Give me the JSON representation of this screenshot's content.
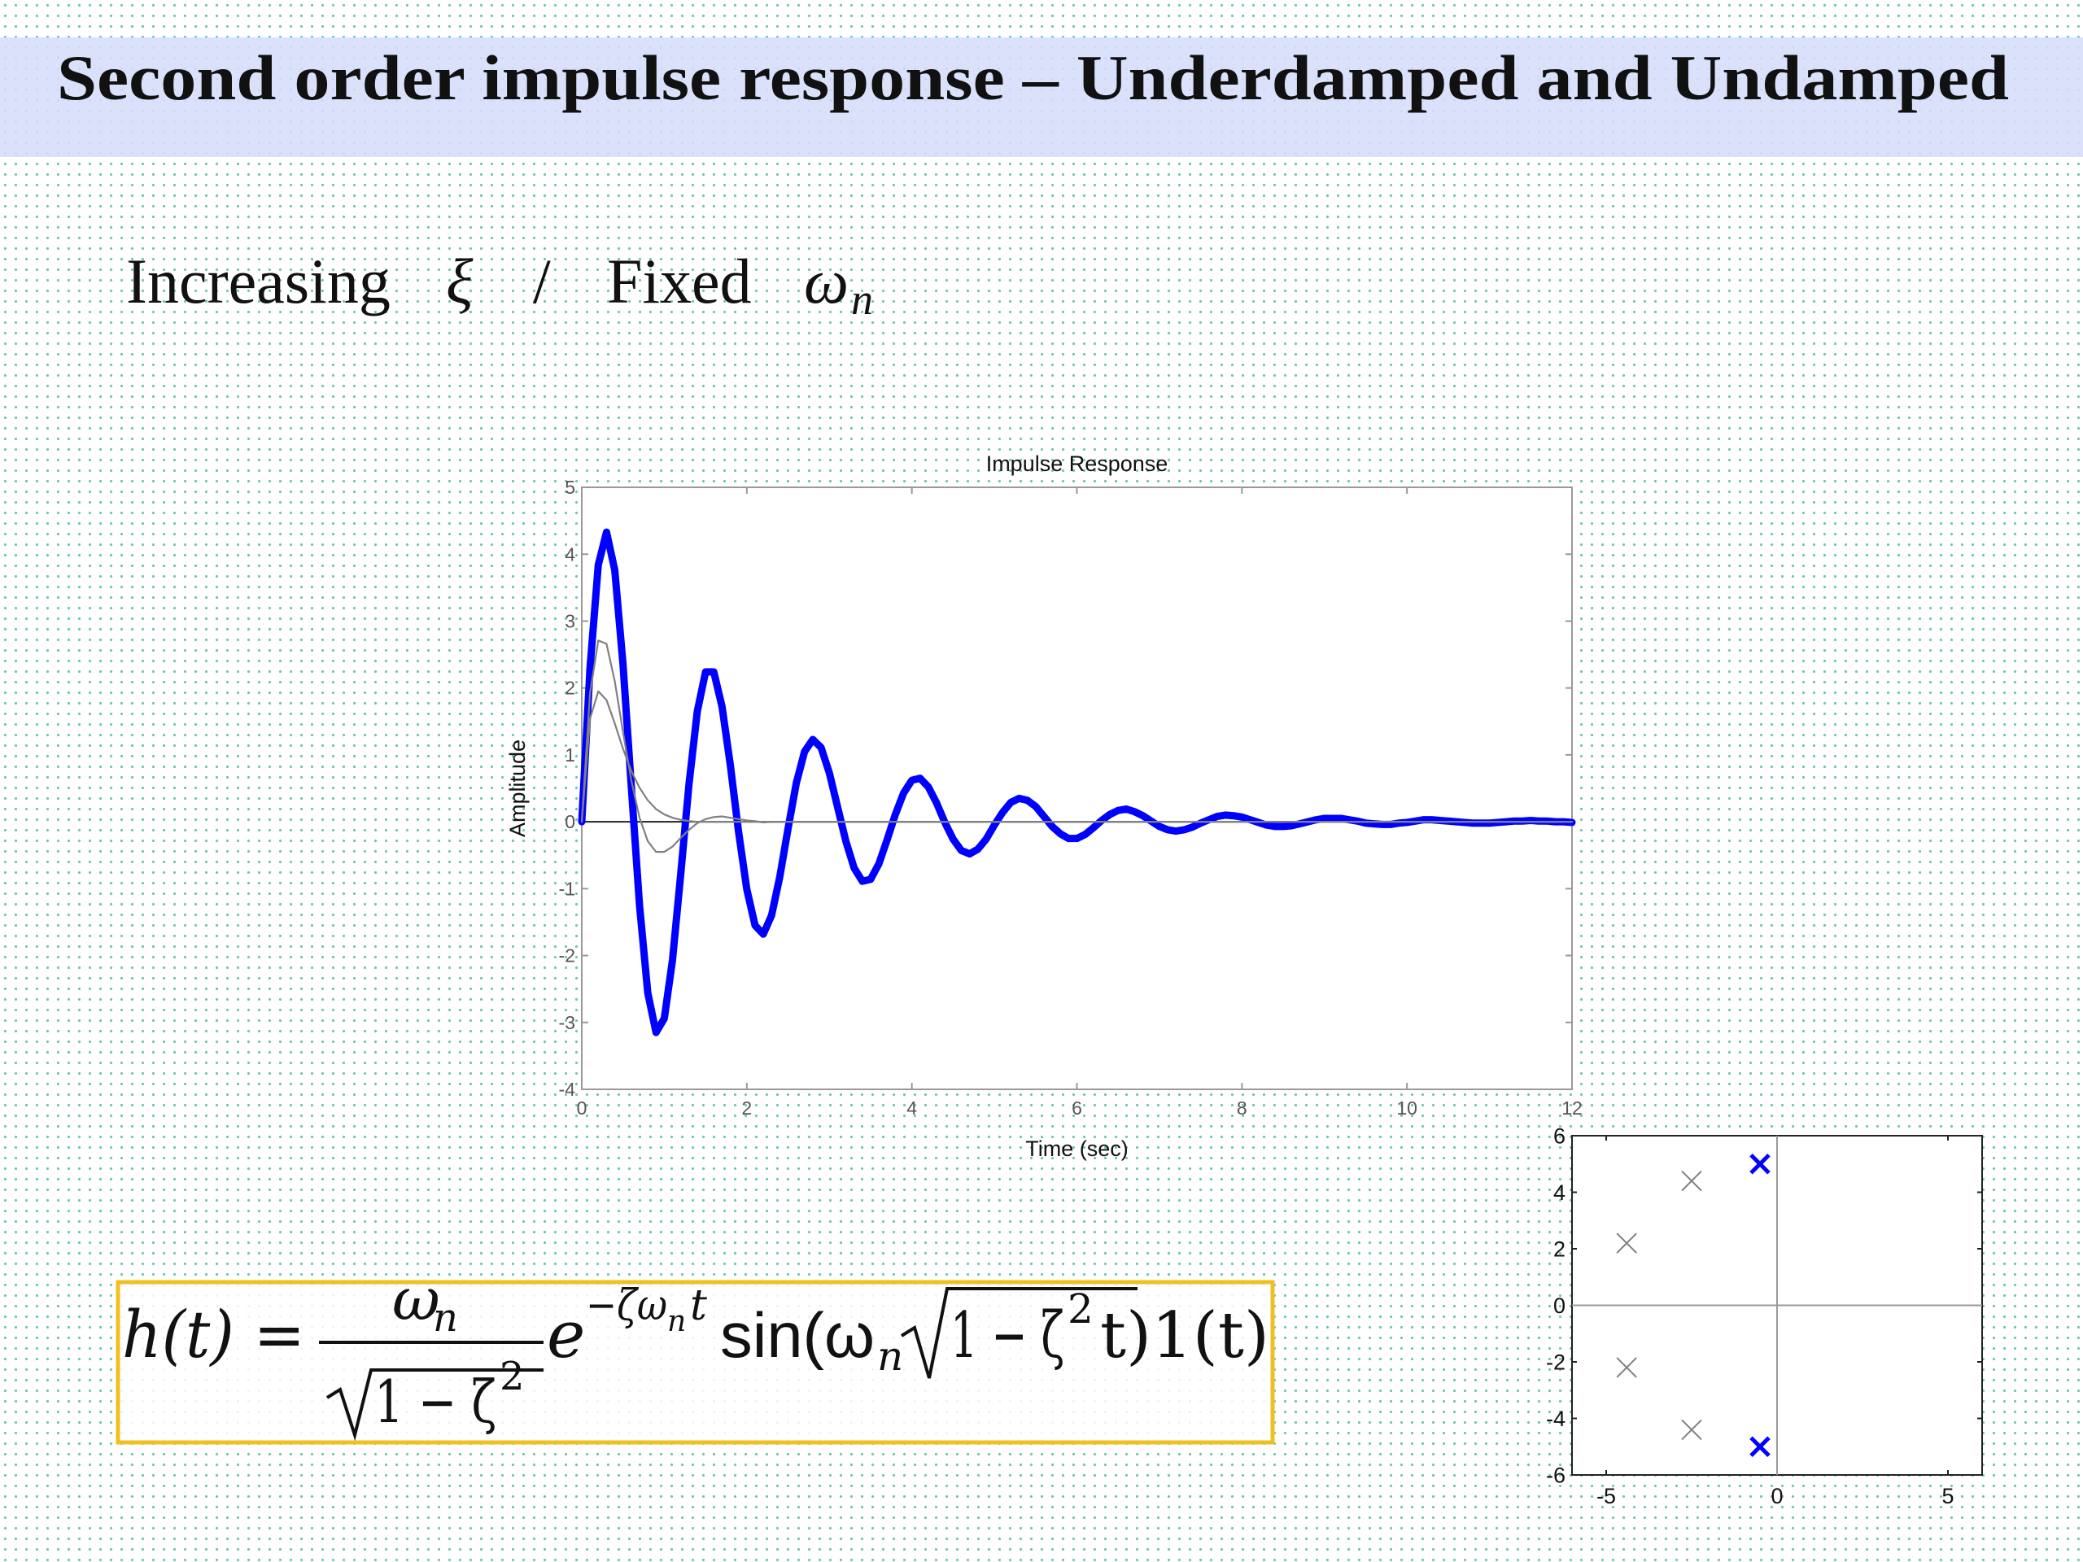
{
  "title": "Second order impulse response – Underdamped and Undamped",
  "subtitle": [
    "Increasing",
    "ξ",
    "/",
    "Fixed",
    "ω",
    "n"
  ],
  "formula": [
    "h(t) =",
    "ω",
    "n",
    "1 − ζ",
    "2",
    "e",
    "−ζω",
    "n",
    "t",
    "sin(ω",
    "n",
    "1 − ζ",
    "2",
    "t)1(t)"
  ],
  "chart_data": [
    {
      "type": "line",
      "title": "Impulse Response",
      "xlabel": "Time (sec)",
      "ylabel": "Amplitude",
      "xlim": [
        0,
        12
      ],
      "ylim": [
        -4,
        5
      ],
      "xticks": [
        0,
        2,
        4,
        6,
        8,
        10,
        12
      ],
      "yticks": [
        -4,
        -3,
        -2,
        -1,
        0,
        1,
        2,
        3,
        4,
        5
      ],
      "x": [
        0,
        0.1,
        0.2,
        0.3,
        0.4,
        0.5,
        0.6,
        0.7,
        0.8,
        0.9,
        1,
        1.1,
        1.2,
        1.3,
        1.4,
        1.5,
        1.6,
        1.7,
        1.8,
        1.9,
        2,
        2.1,
        2.2,
        2.3,
        2.4,
        2.5,
        2.6,
        2.7,
        2.8,
        2.9,
        3,
        3.1,
        3.2,
        3.3,
        3.4,
        3.5,
        3.6,
        3.7,
        3.8,
        3.9,
        4,
        4.1,
        4.2,
        4.3,
        4.4,
        4.5,
        4.6,
        4.7,
        4.8,
        4.9,
        5,
        5.1,
        5.2,
        5.3,
        5.4,
        5.5,
        5.6,
        5.7,
        5.8,
        5.9,
        6,
        6.1,
        6.2,
        6.3,
        6.4,
        6.5,
        6.6,
        6.7,
        6.8,
        6.9,
        7,
        7.1,
        7.2,
        7.3,
        7.4,
        7.5,
        7.6,
        7.7,
        7.8,
        7.9,
        8,
        8.1,
        8.2,
        8.3,
        8.4,
        8.5,
        8.6,
        8.7,
        8.8,
        8.9,
        9,
        9.1,
        9.2,
        9.3,
        9.4,
        9.5,
        9.6,
        9.7,
        9.8,
        9.9,
        10,
        10.1,
        10.2,
        10.3,
        10.4,
        10.5,
        10.6,
        10.7,
        10.8,
        10.9,
        11,
        11.1,
        11.2,
        11.3,
        11.4,
        11.5,
        11.6,
        11.7,
        11.8,
        11.9,
        12
      ],
      "series": [
        {
          "color": "#0000ff",
          "values": [
            0,
            2.3,
            3.84,
            4.33,
            3.76,
            2.35,
            0.53,
            -1.25,
            -2.56,
            -3.15,
            -2.94,
            -2.06,
            -0.77,
            0.57,
            1.65,
            2.24,
            2.24,
            1.72,
            0.85,
            -0.15,
            -1.01,
            -1.55,
            -1.68,
            -1.4,
            -0.82,
            -0.1,
            0.58,
            1.05,
            1.23,
            1.11,
            0.73,
            0.22,
            -0.29,
            -0.69,
            -0.89,
            -0.86,
            -0.63,
            -0.27,
            0.11,
            0.43,
            0.62,
            0.65,
            0.52,
            0.28,
            -0.01,
            -0.26,
            -0.43,
            -0.48,
            -0.41,
            -0.26,
            -0.05,
            0.14,
            0.29,
            0.35,
            0.32,
            0.23,
            0.08,
            -0.07,
            -0.18,
            -0.25,
            -0.25,
            -0.19,
            -0.09,
            0.02,
            0.11,
            0.17,
            0.19,
            0.15,
            0.09,
            0.01,
            -0.07,
            -0.12,
            -0.14,
            -0.12,
            -0.08,
            -0.02,
            0.03,
            0.08,
            0.1,
            0.09,
            0.07,
            0.03,
            -0.01,
            -0.05,
            -0.07,
            -0.07,
            -0.06,
            -0.03,
            0,
            0.03,
            0.05,
            0.05,
            0.05,
            0.03,
            0.01,
            -0.02,
            -0.03,
            -0.04,
            -0.04,
            -0.02,
            -0.01,
            0.01,
            0.03,
            0.03,
            0.02,
            0.01,
            0,
            -0.01,
            -0.02,
            -0.02,
            -0.02,
            -0.01,
            0,
            0.01,
            0.01,
            0.02,
            0.01,
            0.01,
            0,
            0,
            -0.01
          ]
        },
        {
          "color": "#808080",
          "values": [
            0,
            1.92,
            2.71,
            2.66,
            2.1,
            1.34,
            0.62,
            0.06,
            -0.29,
            -0.45,
            -0.45,
            -0.37,
            -0.24,
            -0.12,
            -0.02,
            0.04,
            0.07,
            0.08,
            0.06,
            0.04,
            0.02,
            0.01,
            -0.01,
            0,
            0,
            0,
            0,
            0,
            0,
            0,
            0,
            0,
            0,
            0,
            0,
            0,
            0,
            0,
            0,
            0,
            0,
            0,
            0,
            0,
            0,
            0,
            0,
            0,
            0,
            0,
            0,
            0,
            0,
            0,
            0,
            0,
            0,
            0,
            0,
            0,
            0,
            0,
            0,
            0,
            0,
            0,
            0,
            0,
            0,
            0,
            0,
            0,
            0,
            0,
            0,
            0,
            0,
            0,
            0,
            0,
            0,
            0,
            0,
            0,
            0,
            0,
            0,
            0,
            0,
            0,
            0,
            0,
            0,
            0,
            0,
            0,
            0,
            0,
            0,
            0,
            0,
            0,
            0,
            0,
            0,
            0,
            0,
            0,
            0,
            0,
            0,
            0,
            0,
            0,
            0,
            0,
            0,
            0,
            0,
            0,
            0
          ]
        },
        {
          "color": "#808080",
          "values": [
            0,
            1.54,
            1.95,
            1.82,
            1.47,
            1.09,
            0.76,
            0.51,
            0.32,
            0.19,
            0.11,
            0.06,
            0.03,
            0.01,
            0,
            0,
            0,
            0,
            0,
            0,
            0,
            0,
            0,
            0,
            0,
            0,
            0,
            0,
            0,
            0,
            0,
            0,
            0,
            0,
            0,
            0,
            0,
            0,
            0,
            0,
            0,
            0,
            0,
            0,
            0,
            0,
            0,
            0,
            0,
            0,
            0,
            0,
            0,
            0,
            0,
            0,
            0,
            0,
            0,
            0,
            0,
            0,
            0,
            0,
            0,
            0,
            0,
            0,
            0,
            0,
            0,
            0,
            0,
            0,
            0,
            0,
            0,
            0,
            0,
            0,
            0,
            0,
            0,
            0,
            0,
            0,
            0,
            0,
            0,
            0,
            0,
            0,
            0,
            0,
            0,
            0,
            0,
            0,
            0,
            0,
            0,
            0,
            0,
            0,
            0,
            0,
            0,
            0,
            0,
            0,
            0,
            0,
            0,
            0,
            0,
            0,
            0,
            0,
            0,
            0,
            0
          ]
        }
      ]
    },
    {
      "type": "scatter",
      "xlim": [
        -6,
        6
      ],
      "ylim": [
        -6,
        6
      ],
      "xticks": [
        -5,
        0,
        5
      ],
      "yticks": [
        -6,
        -4,
        -2,
        0,
        2,
        4,
        6
      ],
      "series": [
        {
          "color": "#0000ff",
          "x": [
            -0.5,
            -0.5
          ],
          "values": [
            5,
            -5
          ]
        },
        {
          "color": "#808080",
          "x": [
            -2.5,
            -2.5,
            -4.4,
            -4.4
          ],
          "values": [
            4.4,
            -4.4,
            2.2,
            -2.2
          ]
        }
      ]
    }
  ]
}
